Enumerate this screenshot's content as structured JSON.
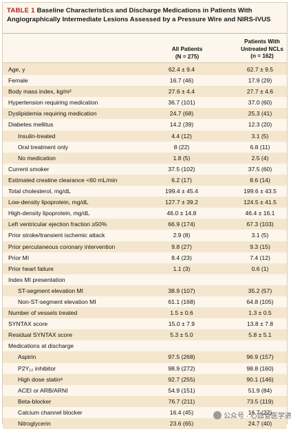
{
  "title": {
    "tag": "TABLE 1",
    "text": "Baseline Characteristics and Discharge Medications in Patients With Angiographically Intermediate Lesions Assessed by a Pressure Wire and NIRS-IVUS"
  },
  "columns": {
    "all": {
      "name": "All Patients",
      "n": "(N = 275)"
    },
    "untreated": {
      "name_line1": "Patients With",
      "name_line2": "Untreated NCLs",
      "n": "(n = 162)"
    }
  },
  "rows": [
    {
      "label": "Age, y",
      "all": "62.4 ± 9.4",
      "untreated": "62.7 ± 9.5"
    },
    {
      "label": "Female",
      "all": "16.7 (46)",
      "untreated": "17.9 (29)"
    },
    {
      "label": "Body mass index, kg/m²",
      "all": "27.6 ± 4.4",
      "untreated": "27.7 ± 4.6"
    },
    {
      "label": "Hypertension requiring medication",
      "all": "36.7 (101)",
      "untreated": "37.0 (60)"
    },
    {
      "label": "Dyslipidemia requiring medication",
      "all": "24.7 (68)",
      "untreated": "25.3 (41)"
    },
    {
      "label": "Diabetes mellitus",
      "all": "14.2 (39)",
      "untreated": "12.3 (20)"
    },
    {
      "label": "Insulin-treated",
      "all": "4.4 (12)",
      "untreated": "3.1 (5)",
      "indent": true
    },
    {
      "label": "Oral treatment only",
      "all": "8 (22)",
      "untreated": "6.8 (11)",
      "indent": true
    },
    {
      "label": "No medication",
      "all": "1.8 (5)",
      "untreated": "2.5 (4)",
      "indent": true
    },
    {
      "label": "Current smoker",
      "all": "37.5 (102)",
      "untreated": "37.5 (60)"
    },
    {
      "label": "Estimated creatine clearance <60 mL/min",
      "all": "6.2 (17)",
      "untreated": "8.6 (14)"
    },
    {
      "label": "Total cholesterol, mg/dL",
      "all": "199.4 ± 45.4",
      "untreated": "199.6 ± 43.5"
    },
    {
      "label": "Low-density lipoprotein, mg/dL",
      "all": "127.7 ± 39.2",
      "untreated": "124.5 ± 41.5"
    },
    {
      "label": "High-density lipoprotein, mg/dL",
      "all": "46.0 ± 14.8",
      "untreated": "46.4 ± 16.1"
    },
    {
      "label": "Left ventricular ejection fraction ≥50%",
      "all": "66.9 (174)",
      "untreated": "67.3 (103)"
    },
    {
      "label": "Prior stroke/transient ischemic attack",
      "all": "2.9 (8)",
      "untreated": "3.1 (5)"
    },
    {
      "label": "Prior percutaneous coronary intervention",
      "all": "9.8 (27)",
      "untreated": "9.3 (15)"
    },
    {
      "label": "Prior MI",
      "all": "8.4 (23)",
      "untreated": "7.4 (12)"
    },
    {
      "label": "Prior heart failure",
      "all": "1.1 (3)",
      "untreated": "0.6 (1)"
    },
    {
      "label": "Index MI presentation",
      "all": "",
      "untreated": ""
    },
    {
      "label": "ST-segment elevation MI",
      "all": "38.9 (107)",
      "untreated": "35.2 (57)",
      "indent": true
    },
    {
      "label": "Non-ST-segment elevation MI",
      "all": "61.1 (168)",
      "untreated": "64.8 (105)",
      "indent": true
    },
    {
      "label": "Number of vessels treated",
      "all": "1.5 ± 0.6",
      "untreated": "1.3 ± 0.5"
    },
    {
      "label": "SYNTAX score",
      "all": "15.0 ± 7.9",
      "untreated": "13.8 ± 7.8"
    },
    {
      "label": "Residual SYNTAX score",
      "all": "5.3 ± 5.0",
      "untreated": "5.8 ± 5.1"
    },
    {
      "label": "Medications at discharge",
      "all": "",
      "untreated": ""
    },
    {
      "label": "Aspirin",
      "all": "97.5 (268)",
      "untreated": "96.9 (157)",
      "indent": true
    },
    {
      "label": "P2Y₁₂ inhibitor",
      "all": "98.9 (272)",
      "untreated": "98.8 (160)",
      "indent": true
    },
    {
      "label": "High dose statinᵃ",
      "all": "92.7 (255)",
      "untreated": "90.1 (146)",
      "indent": true
    },
    {
      "label": "ACEI or ARB/ARNI",
      "all": "54.9 (151)",
      "untreated": "51.9 (84)",
      "indent": true
    },
    {
      "label": "Beta-blocker",
      "all": "76.7 (211)",
      "untreated": "73.5 (119)",
      "indent": true
    },
    {
      "label": "Calcium channel blocker",
      "all": "16.4 (45)",
      "untreated": "16.7 (27)",
      "indent": true
    },
    {
      "label": "Nitroglycerin",
      "all": "23.6 (65)",
      "untreated": "24.7 (40)",
      "indent": true
    }
  ],
  "watermark": "公众号 · 心血管医学进展"
}
